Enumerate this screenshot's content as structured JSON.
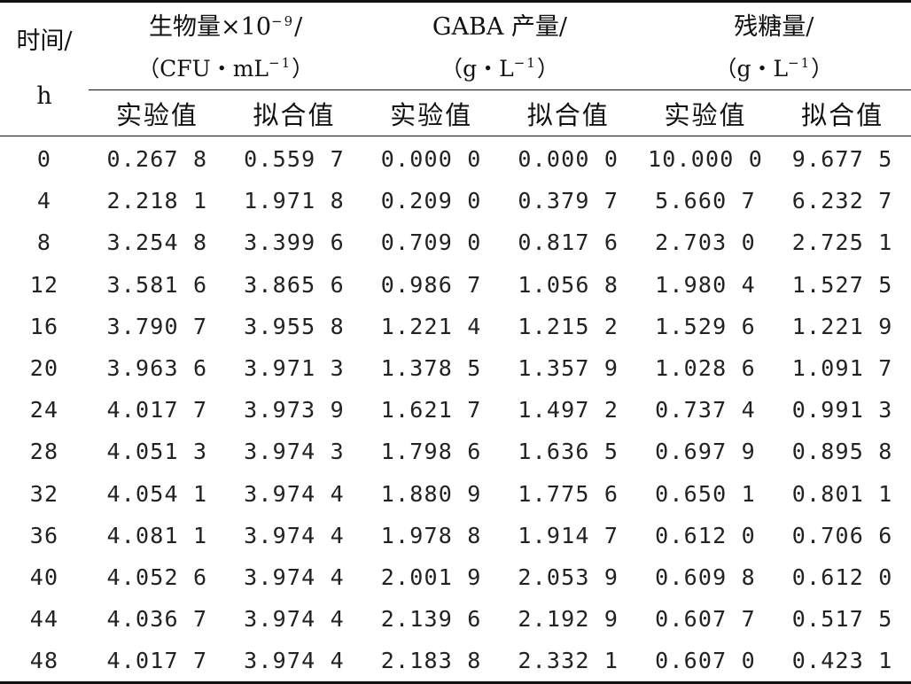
{
  "table": {
    "header": {
      "time": {
        "line1": "时间/",
        "line2": "h"
      },
      "groups": [
        {
          "title": "生物量×10",
          "title_sup": "−9",
          "title_tail": "/",
          "unit": "（CFU・mL",
          "unit_sup": "−1",
          "unit_tail": "）"
        },
        {
          "title": "GABA 产量/",
          "title_sup": "",
          "title_tail": "",
          "unit": "（g・L",
          "unit_sup": "−1",
          "unit_tail": "）"
        },
        {
          "title": "残糖量/",
          "title_sup": "",
          "title_tail": "",
          "unit": "（g・L",
          "unit_sup": "−1",
          "unit_tail": "）"
        }
      ],
      "sub": [
        "实验值",
        "拟合值",
        "实验值",
        "拟合值",
        "实验值",
        "拟合值"
      ]
    },
    "rows": [
      [
        "0",
        "0.267 8",
        "0.559 7",
        "0.000 0",
        "0.000 0",
        "10.000 0",
        "9.677 5"
      ],
      [
        "4",
        "2.218 1",
        "1.971 8",
        "0.209 0",
        "0.379 7",
        "5.660 7",
        "6.232 7"
      ],
      [
        "8",
        "3.254 8",
        "3.399 6",
        "0.709 0",
        "0.817 6",
        "2.703 0",
        "2.725 1"
      ],
      [
        "12",
        "3.581 6",
        "3.865 6",
        "0.986 7",
        "1.056 8",
        "1.980 4",
        "1.527 5"
      ],
      [
        "16",
        "3.790 7",
        "3.955 8",
        "1.221 4",
        "1.215 2",
        "1.529 6",
        "1.221 9"
      ],
      [
        "20",
        "3.963 6",
        "3.971 3",
        "1.378 5",
        "1.357 9",
        "1.028 6",
        "1.091 7"
      ],
      [
        "24",
        "4.017 7",
        "3.973 9",
        "1.621 7",
        "1.497 2",
        "0.737 4",
        "0.991 3"
      ],
      [
        "28",
        "4.051 3",
        "3.974 3",
        "1.798 6",
        "1.636 5",
        "0.697 9",
        "0.895 8"
      ],
      [
        "32",
        "4.054 1",
        "3.974 4",
        "1.880 9",
        "1.775 6",
        "0.650 1",
        "0.801 1"
      ],
      [
        "36",
        "4.081 1",
        "3.974 4",
        "1.978 8",
        "1.914 7",
        "0.612 0",
        "0.706 6"
      ],
      [
        "40",
        "4.052 6",
        "3.974 4",
        "2.001 9",
        "2.053 9",
        "0.609 8",
        "0.612 0"
      ],
      [
        "44",
        "4.036 7",
        "3.974 4",
        "2.139 6",
        "2.192 9",
        "0.607 7",
        "0.517 5"
      ],
      [
        "48",
        "4.017 7",
        "3.974 4",
        "2.183 8",
        "2.332 1",
        "0.607 0",
        "0.423 1"
      ]
    ]
  }
}
